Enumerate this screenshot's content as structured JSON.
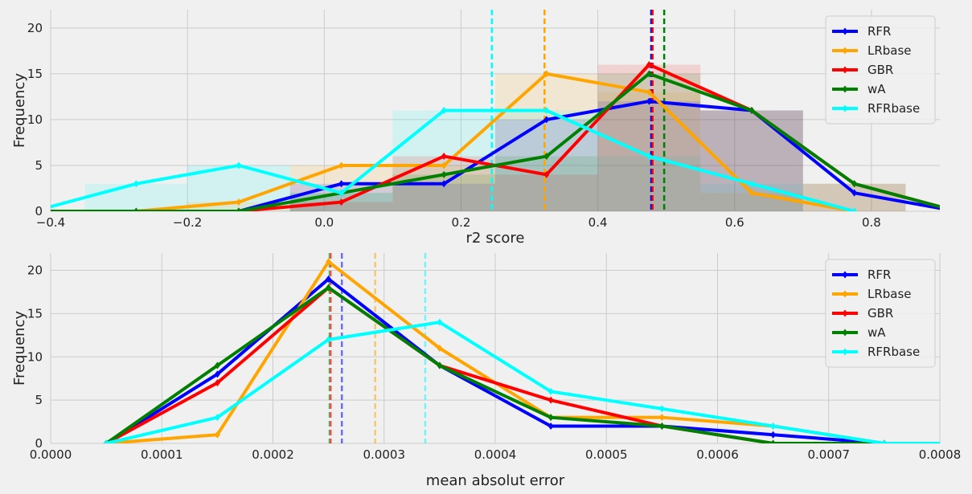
{
  "chart_data": [
    {
      "type": "line",
      "xlabel": "r2 score",
      "ylabel": "Frequency",
      "xlim": [
        -0.4,
        0.9
      ],
      "ylim": [
        0,
        22
      ],
      "xticks": [
        -0.4,
        -0.2,
        0.0,
        0.2,
        0.4,
        0.6,
        0.8
      ],
      "xtick_labels": [
        "−0.4",
        "−0.2",
        "0.0",
        "0.2",
        "0.4",
        "0.6",
        "0.8"
      ],
      "yticks": [
        0,
        5,
        10,
        15,
        20
      ],
      "ytick_labels": [
        "0",
        "5",
        "10",
        "15",
        "20"
      ],
      "grid": true,
      "legend": "top-right",
      "series": [
        {
          "name": "RFR",
          "color": "#0000ff",
          "x": [
            -0.125,
            0.025,
            0.175,
            0.325,
            0.475,
            0.625,
            0.775,
            0.925
          ],
          "y": [
            0,
            3,
            3,
            10,
            12,
            11,
            2,
            0
          ]
        },
        {
          "name": "LRbase",
          "color": "#ffa500",
          "x": [
            -0.275,
            -0.125,
            0.025,
            0.175,
            0.325,
            0.475,
            0.625,
            0.775
          ],
          "y": [
            0,
            1,
            5,
            5,
            15,
            13,
            2,
            0
          ]
        },
        {
          "name": "GBR",
          "color": "#ff0000",
          "x": [
            -0.125,
            0.025,
            0.175,
            0.325,
            0.475,
            0.625,
            0.775,
            0.925
          ],
          "y": [
            0,
            1,
            6,
            4,
            16,
            11,
            3,
            0
          ]
        },
        {
          "name": "wA",
          "color": "#008000",
          "x": [
            -0.425,
            -0.275,
            -0.125,
            0.025,
            0.175,
            0.325,
            0.475,
            0.625,
            0.775,
            0.925
          ],
          "y": [
            0,
            0,
            0,
            2,
            4,
            6,
            15,
            11,
            3,
            0
          ]
        },
        {
          "name": "RFRbase",
          "color": "#00ffff",
          "x": [
            -0.425,
            -0.275,
            -0.125,
            0.025,
            0.175,
            0.325,
            0.475,
            0.625,
            0.775
          ],
          "y": [
            0,
            3,
            5,
            2,
            11,
            11,
            6,
            3,
            0
          ]
        }
      ],
      "histograms": [
        {
          "series": "RFRbase",
          "color": "#00ffff",
          "edges": [
            -0.35,
            -0.2,
            -0.05,
            0.1,
            0.25,
            0.4,
            0.55,
            0.7
          ],
          "counts": [
            3,
            5,
            2,
            11,
            11,
            6,
            3
          ]
        },
        {
          "series": "LRbase",
          "color": "#ffa500",
          "edges": [
            -0.2,
            -0.05,
            0.1,
            0.25,
            0.4,
            0.55,
            0.7
          ],
          "counts": [
            1,
            5,
            5,
            15,
            13,
            2
          ]
        },
        {
          "series": "RFR",
          "color": "#0000ff",
          "edges": [
            -0.05,
            0.1,
            0.25,
            0.4,
            0.55,
            0.7
          ],
          "counts": [
            3,
            3,
            10,
            12,
            11
          ]
        },
        {
          "series": "GBR",
          "color": "#ff0000",
          "edges": [
            -0.05,
            0.1,
            0.25,
            0.4,
            0.55,
            0.7,
            0.85
          ],
          "counts": [
            1,
            6,
            4,
            16,
            11,
            3
          ]
        },
        {
          "series": "wA",
          "color": "#008000",
          "edges": [
            -0.05,
            0.1,
            0.25,
            0.4,
            0.55,
            0.7,
            0.85
          ],
          "counts": [
            2,
            4,
            6,
            15,
            11,
            3
          ]
        }
      ],
      "mean_lines": [
        {
          "series": "RFRbase",
          "x": 0.245,
          "color": "#00ffff"
        },
        {
          "series": "LRbase",
          "x": 0.322,
          "color": "#ffa500"
        },
        {
          "series": "RFR",
          "x": 0.478,
          "color": "#0000ff"
        },
        {
          "series": "GBR",
          "x": 0.48,
          "color": "#ff0000"
        },
        {
          "series": "wA",
          "x": 0.497,
          "color": "#008000"
        }
      ]
    },
    {
      "type": "line",
      "xlabel": "mean absolut error",
      "ylabel": "Frequency",
      "xlim": [
        0.0,
        0.0008
      ],
      "ylim": [
        0,
        22
      ],
      "xticks": [
        0.0,
        0.0001,
        0.0002,
        0.0003,
        0.0004,
        0.0005,
        0.0006,
        0.0007,
        0.0008
      ],
      "xtick_labels": [
        "0.0000",
        "0.0001",
        "0.0002",
        "0.0003",
        "0.0004",
        "0.0005",
        "0.0006",
        "0.0007",
        "0.0008"
      ],
      "yticks": [
        0,
        5,
        10,
        15,
        20
      ],
      "ytick_labels": [
        "0",
        "5",
        "10",
        "15",
        "20"
      ],
      "grid": true,
      "legend": "top-right",
      "series": [
        {
          "name": "RFR",
          "color": "#0000ff",
          "x": [
            5e-05,
            0.00015,
            0.00025,
            0.00035,
            0.00045,
            0.00055,
            0.00065,
            0.00075,
            0.00085
          ],
          "y": [
            0,
            8,
            19,
            9,
            2,
            2,
            1,
            0,
            0
          ]
        },
        {
          "name": "LRbase",
          "color": "#ffa500",
          "x": [
            5e-05,
            0.00015,
            0.00025,
            0.00035,
            0.00045,
            0.00055,
            0.00065,
            0.00075,
            0.00085
          ],
          "y": [
            0,
            1,
            21,
            11,
            3,
            3,
            2,
            0,
            0
          ]
        },
        {
          "name": "GBR",
          "color": "#ff0000",
          "x": [
            5e-05,
            0.00015,
            0.00025,
            0.00035,
            0.00045,
            0.00055,
            0.00065,
            0.00075,
            0.00085
          ],
          "y": [
            0,
            7,
            18,
            9,
            5,
            2,
            0,
            0,
            0
          ]
        },
        {
          "name": "wA",
          "color": "#008000",
          "x": [
            5e-05,
            0.00015,
            0.00025,
            0.00035,
            0.00045,
            0.00055,
            0.00065,
            0.00075,
            0.00085
          ],
          "y": [
            0,
            9,
            18,
            9,
            3,
            2,
            0,
            0,
            0
          ]
        },
        {
          "name": "RFRbase",
          "color": "#00ffff",
          "x": [
            5e-05,
            0.00015,
            0.00025,
            0.00035,
            0.00045,
            0.00055,
            0.00065,
            0.00075,
            0.00085
          ],
          "y": [
            0,
            3,
            12,
            14,
            6,
            4,
            2,
            0,
            0
          ]
        }
      ],
      "mean_lines": [
        {
          "series": "wA",
          "x": 0.000251,
          "color": "#008000"
        },
        {
          "series": "GBR",
          "x": 0.000252,
          "color": "#ff0000"
        },
        {
          "series": "RFR",
          "x": 0.000262,
          "color": "#0000ff"
        },
        {
          "series": "LRbase",
          "x": 0.000292,
          "color": "#ffa500"
        },
        {
          "series": "RFRbase",
          "x": 0.000337,
          "color": "#00ffff"
        }
      ]
    }
  ]
}
